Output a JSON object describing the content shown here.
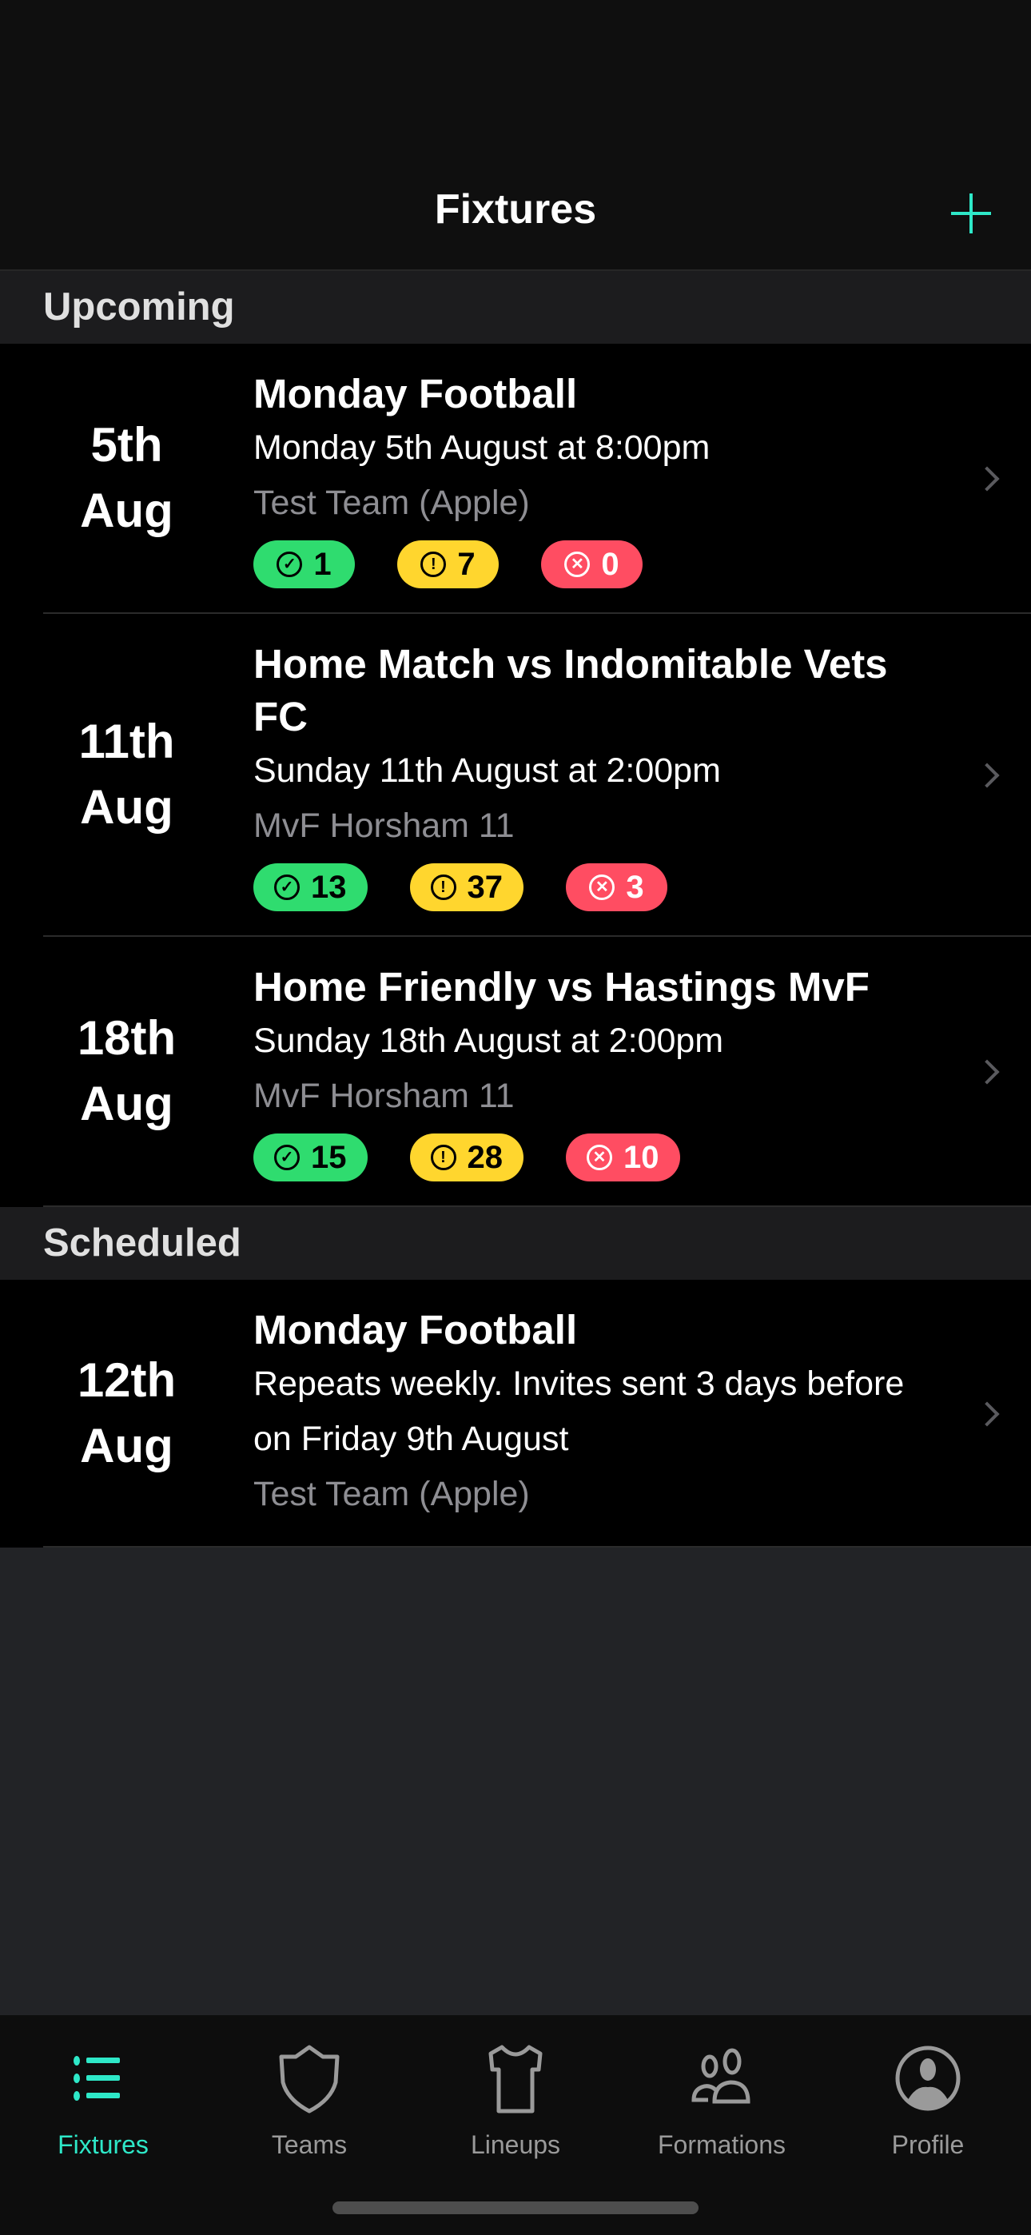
{
  "header": {
    "title": "Fixtures",
    "add_icon": "plus-icon"
  },
  "colors": {
    "accent": "#2ee8c8",
    "available": "#2fdc6f",
    "maybe": "#ffd62e",
    "unavailable": "#ff4d62"
  },
  "sections": [
    {
      "title": "Upcoming",
      "fixtures": [
        {
          "day": "5th",
          "month": "Aug",
          "title": "Monday Football",
          "when": "Monday 5th August at 8:00pm",
          "team": "Test Team (Apple)",
          "available": "1",
          "maybe": "7",
          "unavailable": "0"
        },
        {
          "day": "11th",
          "month": "Aug",
          "title": "Home Match vs Indomitable Vets FC",
          "when": "Sunday 11th August at 2:00pm",
          "team": "MvF Horsham 11",
          "available": "13",
          "maybe": "37",
          "unavailable": "3"
        },
        {
          "day": "18th",
          "month": "Aug",
          "title": "Home Friendly vs Hastings MvF",
          "when": "Sunday 18th August at 2:00pm",
          "team": "MvF Horsham 11",
          "available": "15",
          "maybe": "28",
          "unavailable": "10"
        }
      ]
    },
    {
      "title": "Scheduled",
      "fixtures": [
        {
          "day": "12th",
          "month": "Aug",
          "title": "Monday Football",
          "when": "Repeats weekly. Invites sent 3 days before on Friday 9th August",
          "team": "Test Team (Apple)"
        }
      ]
    }
  ],
  "tabs": [
    {
      "label": "Fixtures",
      "icon": "list-icon",
      "active": true
    },
    {
      "label": "Teams",
      "icon": "shield-icon"
    },
    {
      "label": "Lineups",
      "icon": "shirt-icon"
    },
    {
      "label": "Formations",
      "icon": "people-icon"
    },
    {
      "label": "Profile",
      "icon": "person-circle-icon"
    }
  ]
}
